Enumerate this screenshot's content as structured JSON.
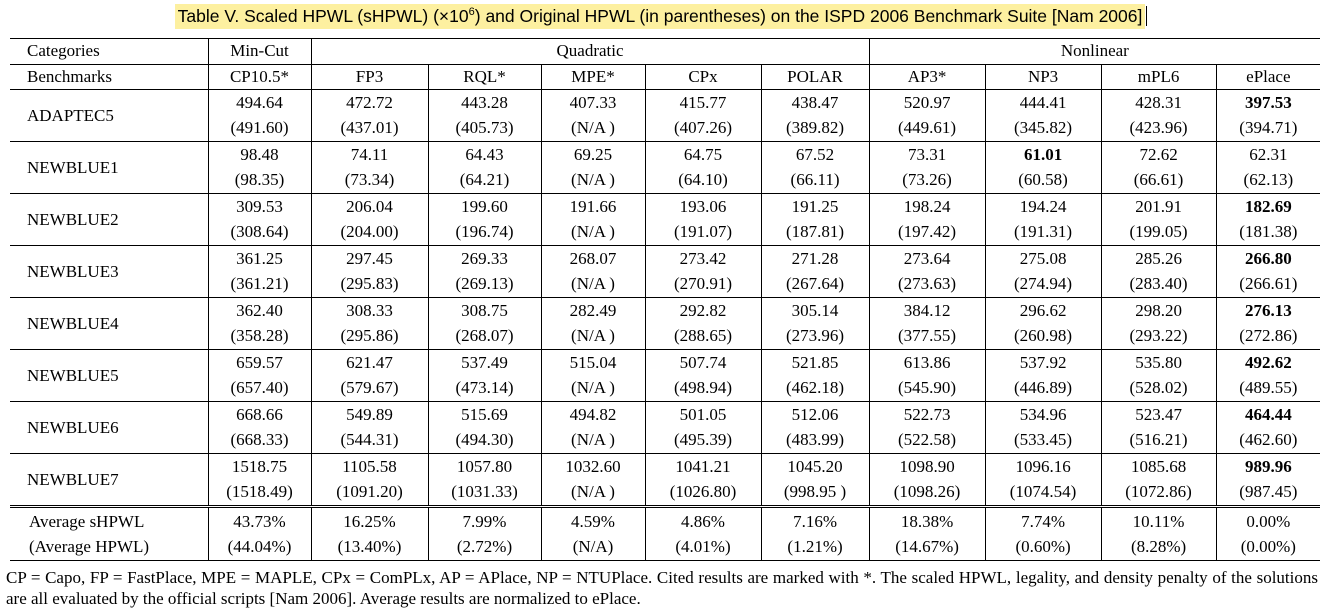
{
  "caption": {
    "prefix": "Table V.  Scaled HPWL (sHPWL) (×10",
    "exponent": "6",
    "suffix": ") and Original HPWL (in parentheses) on the ISPD 2006 Benchmark Suite [Nam 2006]"
  },
  "header": {
    "categories_label": "Categories",
    "benchmarks_label": "Benchmarks",
    "groups": [
      "Min-Cut",
      "Quadratic",
      "Nonlinear"
    ],
    "columns": [
      "CP10.5*",
      "FP3",
      "RQL*",
      "MPE*",
      "CPx",
      "POLAR",
      "AP3*",
      "NP3",
      "mPL6",
      "ePlace"
    ]
  },
  "rows": [
    {
      "name": "ADAPTEC5",
      "shpwl": [
        "494.64",
        "472.72",
        "443.28",
        "407.33",
        "415.77",
        "438.47",
        "520.97",
        "444.41",
        "428.31",
        "397.53"
      ],
      "hpwl": [
        "(491.60)",
        "(437.01)",
        "(405.73)",
        "(N/A )",
        "(407.26)",
        "(389.82)",
        "(449.61)",
        "(345.82)",
        "(423.96)",
        "(394.71)"
      ],
      "bold_index": 9
    },
    {
      "name": "NEWBLUE1",
      "shpwl": [
        "98.48",
        "74.11",
        "64.43",
        "69.25",
        "64.75",
        "67.52",
        "73.31",
        "61.01",
        "72.62",
        "62.31"
      ],
      "hpwl": [
        "(98.35)",
        "(73.34)",
        "(64.21)",
        "(N/A )",
        "(64.10)",
        "(66.11)",
        "(73.26)",
        "(60.58)",
        "(66.61)",
        "(62.13)"
      ],
      "bold_index": 7
    },
    {
      "name": "NEWBLUE2",
      "shpwl": [
        "309.53",
        "206.04",
        "199.60",
        "191.66",
        "193.06",
        "191.25",
        "198.24",
        "194.24",
        "201.91",
        "182.69"
      ],
      "hpwl": [
        "(308.64)",
        "(204.00)",
        "(196.74)",
        "(N/A )",
        "(191.07)",
        "(187.81)",
        "(197.42)",
        "(191.31)",
        "(199.05)",
        "(181.38)"
      ],
      "bold_index": 9
    },
    {
      "name": "NEWBLUE3",
      "shpwl": [
        "361.25",
        "297.45",
        "269.33",
        "268.07",
        "273.42",
        "271.28",
        "273.64",
        "275.08",
        "285.26",
        "266.80"
      ],
      "hpwl": [
        "(361.21)",
        "(295.83)",
        "(269.13)",
        "(N/A )",
        "(270.91)",
        "(267.64)",
        "(273.63)",
        "(274.94)",
        "(283.40)",
        "(266.61)"
      ],
      "bold_index": 9
    },
    {
      "name": "NEWBLUE4",
      "shpwl": [
        "362.40",
        "308.33",
        "308.75",
        "282.49",
        "292.82",
        "305.14",
        "384.12",
        "296.62",
        "298.20",
        "276.13"
      ],
      "hpwl": [
        "(358.28)",
        "(295.86)",
        "(268.07)",
        "(N/A )",
        "(288.65)",
        "(273.96)",
        "(377.55)",
        "(260.98)",
        "(293.22)",
        "(272.86)"
      ],
      "bold_index": 9
    },
    {
      "name": "NEWBLUE5",
      "shpwl": [
        "659.57",
        "621.47",
        "537.49",
        "515.04",
        "507.74",
        "521.85",
        "613.86",
        "537.92",
        "535.80",
        "492.62"
      ],
      "hpwl": [
        "(657.40)",
        "(579.67)",
        "(473.14)",
        "(N/A )",
        "(498.94)",
        "(462.18)",
        "(545.90)",
        "(446.89)",
        "(528.02)",
        "(489.55)"
      ],
      "bold_index": 9
    },
    {
      "name": "NEWBLUE6",
      "shpwl": [
        "668.66",
        "549.89",
        "515.69",
        "494.82",
        "501.05",
        "512.06",
        "522.73",
        "534.96",
        "523.47",
        "464.44"
      ],
      "hpwl": [
        "(668.33)",
        "(544.31)",
        "(494.30)",
        "(N/A )",
        "(495.39)",
        "(483.99)",
        "(522.58)",
        "(533.45)",
        "(516.21)",
        "(462.60)"
      ],
      "bold_index": 9
    },
    {
      "name": "NEWBLUE7",
      "shpwl": [
        "1518.75",
        "1105.58",
        "1057.80",
        "1032.60",
        "1041.21",
        "1045.20",
        "1098.90",
        "1096.16",
        "1085.68",
        "989.96"
      ],
      "hpwl": [
        "(1518.49)",
        "(1091.20)",
        "(1031.33)",
        "(N/A )",
        "(1026.80)",
        "(998.95 )",
        "(1098.26)",
        "(1074.54)",
        "(1072.86)",
        "(987.45)"
      ],
      "bold_index": 9
    }
  ],
  "average": {
    "label_shpwl": "Average sHPWL",
    "label_hpwl": "(Average HPWL)",
    "shpwl": [
      "43.73%",
      "16.25%",
      "7.99%",
      "4.59%",
      "4.86%",
      "7.16%",
      "18.38%",
      "7.74%",
      "10.11%",
      "0.00%"
    ],
    "hpwl": [
      "(44.04%)",
      "(13.40%)",
      "(2.72%)",
      "(N/A)",
      "(4.01%)",
      "(1.21%)",
      "(14.67%)",
      "(0.60%)",
      "(8.28%)",
      "(0.00%)"
    ]
  },
  "footnote": "CP = Capo, FP = FastPlace, MPE = MAPLE, CPx = ComPLx, AP = APlace, NP = NTUPlace. Cited results are marked with *. The scaled HPWL, legality, and density penalty of the solutions are all evaluated by the official scripts [Nam 2006]. Average results are normalized to ePlace.",
  "colors": {
    "caption_highlight": "#fdf0a0"
  }
}
